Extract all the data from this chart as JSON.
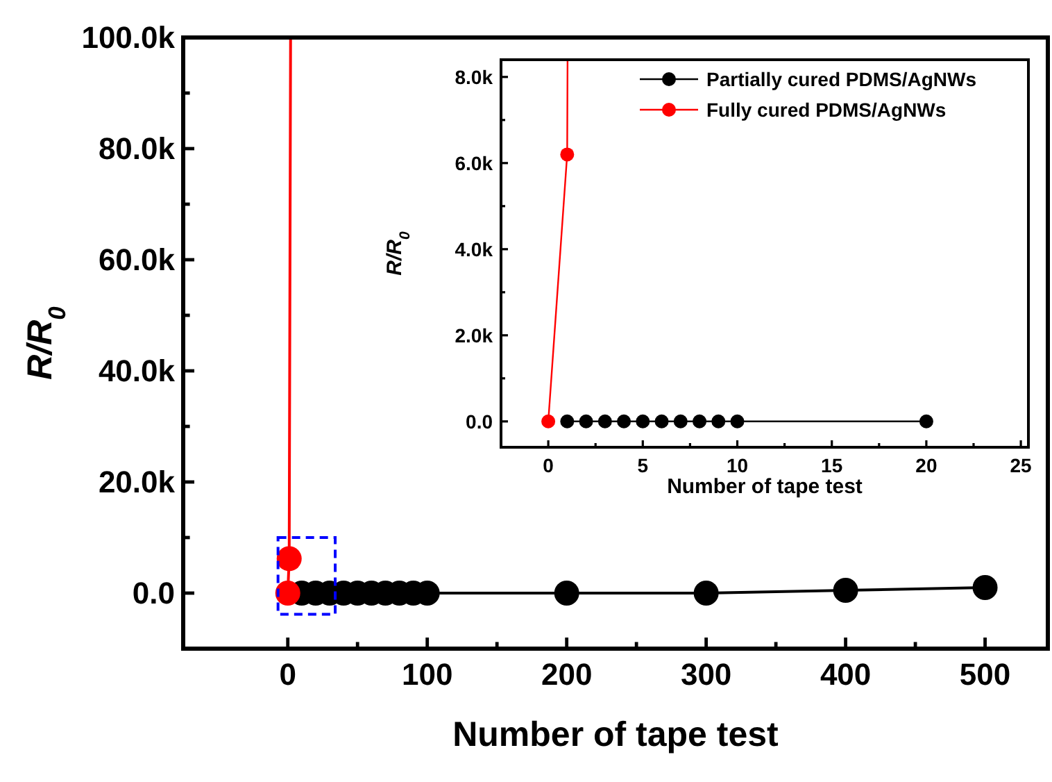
{
  "chart_data": [
    {
      "type": "line",
      "xlabel": "Number of tape test",
      "ylabel": "R/R$_{0}$",
      "marker": "circle",
      "line_style": "solid",
      "grid": false,
      "legend": false,
      "xlim": [
        -75,
        545
      ],
      "ylim": [
        -10000,
        100000
      ],
      "xticks": [
        0,
        {
          "value": 50,
          "label": null
        },
        100,
        {
          "value": 150,
          "label": null
        },
        200,
        {
          "value": 250,
          "label": null
        },
        300,
        {
          "value": 350,
          "label": null
        },
        400,
        {
          "value": 450,
          "label": null
        },
        500
      ],
      "yticks": [
        {
          "value": 0,
          "label": "0.0"
        },
        {
          "value": 10000,
          "label": null
        },
        {
          "value": 20000,
          "label": "20.0k"
        },
        {
          "value": 30000,
          "label": null
        },
        {
          "value": 40000,
          "label": "40.0k"
        },
        {
          "value": 50000,
          "label": null
        },
        {
          "value": 60000,
          "label": "60.0k"
        },
        {
          "value": 70000,
          "label": null
        },
        {
          "value": 80000,
          "label": "80.0k"
        },
        {
          "value": 90000,
          "label": null
        },
        {
          "value": 100000,
          "label": "100.0k"
        }
      ],
      "series": [
        {
          "color": "#000000",
          "x": [
            10,
            20,
            30,
            40,
            50,
            60,
            70,
            80,
            90,
            100,
            200,
            300,
            400,
            500
          ],
          "values": [
            0,
            0,
            0,
            0,
            0,
            0,
            0,
            0,
            0,
            0,
            0,
            0,
            500,
            1000
          ]
        },
        {
          "color": "#ff0000",
          "x": [
            0,
            1,
            2
          ],
          "values": [
            0,
            6200,
            100000
          ]
        }
      ]
    },
    {
      "type": "line",
      "xlabel": "Number of tape test",
      "ylabel": "R/R$_{0}$",
      "marker": "circle",
      "line_style": "solid",
      "grid": false,
      "legend": "top right",
      "xlim": [
        -2.5,
        25.4
      ],
      "ylim": [
        -600,
        8400
      ],
      "xticks": [
        0,
        {
          "value": 2.5,
          "label": null
        },
        5,
        {
          "value": 7.5,
          "label": null
        },
        10,
        {
          "value": 12.5,
          "label": null
        },
        15,
        {
          "value": 17.5,
          "label": null
        },
        20,
        {
          "value": 22.5,
          "label": null
        },
        25
      ],
      "yticks": [
        {
          "value": 0,
          "label": "0.0"
        },
        {
          "value": 1000,
          "label": null
        },
        {
          "value": 2000,
          "label": "2.0k"
        },
        {
          "value": 3000,
          "label": null
        },
        {
          "value": 4000,
          "label": "4.0k"
        },
        {
          "value": 5000,
          "label": null
        },
        {
          "value": 6000,
          "label": "6.0k"
        },
        {
          "value": 7000,
          "label": null
        },
        {
          "value": 8000,
          "label": "8.0k"
        }
      ],
      "series": [
        {
          "name": "Partially cured PDMS/AgNWs",
          "color": "#000000",
          "x": [
            1,
            2,
            3,
            4,
            5,
            6,
            7,
            8,
            9,
            10,
            20
          ],
          "values": [
            0,
            0,
            0,
            0,
            0,
            0,
            0,
            0,
            0,
            0,
            0
          ]
        },
        {
          "name": "Fully cured PDMS/AgNWs",
          "color": "#ff0000",
          "x": [
            0,
            1,
            1.02
          ],
          "values": [
            0,
            6200,
            8400
          ]
        }
      ]
    }
  ]
}
